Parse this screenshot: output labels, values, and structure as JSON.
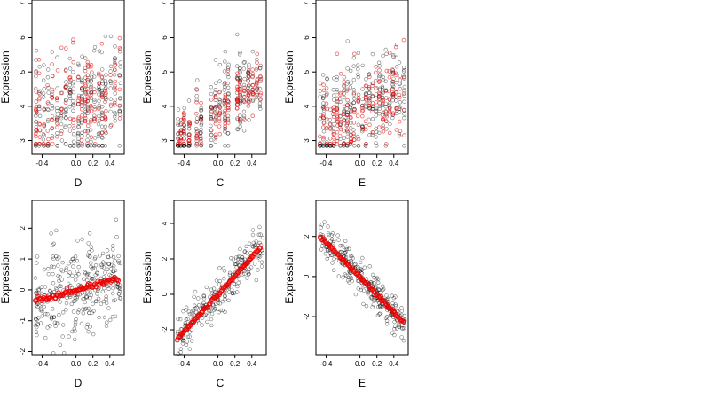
{
  "chart_data": [
    {
      "type": "scatter",
      "panel": "top-left",
      "xlabel": "D",
      "ylabel": "Expression",
      "xlim": [
        -0.52,
        0.57
      ],
      "ylim": [
        2.6,
        7.1
      ],
      "xticks": [
        -0.4,
        0.0,
        0.2,
        0.4
      ],
      "xtick_labels": [
        "-0.4",
        "0.0",
        "0.2",
        "0.4"
      ],
      "yticks": [
        3,
        4,
        5,
        6,
        7
      ],
      "ytick_labels": [
        "3",
        "4",
        "5",
        "6",
        "7"
      ],
      "point_colors": {
        "black": "#000000",
        "red": "#e00000"
      },
      "x_groups": [
        -0.47,
        -0.43,
        -0.38,
        -0.33,
        -0.28,
        -0.22,
        -0.17,
        -0.12,
        -0.07,
        -0.03,
        0.03,
        0.07,
        0.11,
        0.14,
        0.18,
        0.22,
        0.27,
        0.31,
        0.35,
        0.41,
        0.46,
        0.52
      ],
      "black_points": {
        "center": 4.0,
        "slope": 0.6,
        "spread": 0.85,
        "count": 300
      },
      "red_points": {
        "center": 4.1,
        "slope": 0.9,
        "spread": 0.75,
        "count": 180
      }
    },
    {
      "type": "scatter",
      "panel": "top-middle",
      "xlabel": "C",
      "ylabel": "Expression",
      "xlim": [
        -0.52,
        0.57
      ],
      "ylim": [
        2.6,
        7.1
      ],
      "xticks": [
        -0.4,
        0.0,
        0.2,
        0.4
      ],
      "xtick_labels": [
        "-0.4",
        "0.0",
        "0.2",
        "0.4"
      ],
      "yticks": [
        3,
        4,
        5,
        6,
        7
      ],
      "ytick_labels": [
        "3",
        "4",
        "5",
        "6",
        "7"
      ],
      "x_groups": [
        -0.47,
        -0.44,
        -0.4,
        -0.34,
        -0.25,
        -0.2,
        -0.08,
        -0.03,
        0.02,
        0.08,
        0.12,
        0.23,
        0.26,
        0.31,
        0.36,
        0.41,
        0.46,
        0.5
      ],
      "black_points": {
        "center": 3.9,
        "slope": 1.9,
        "spread": 0.6,
        "count": 260
      },
      "red_points": {
        "center": 3.8,
        "slope": 1.8,
        "spread": 0.45,
        "count": 170
      }
    },
    {
      "type": "scatter",
      "panel": "top-right",
      "xlabel": "E",
      "ylabel": "Expression",
      "xlim": [
        -0.52,
        0.57
      ],
      "ylim": [
        2.6,
        7.1
      ],
      "xticks": [
        -0.4,
        0.0,
        0.2,
        0.4
      ],
      "xtick_labels": [
        "-0.4",
        "0.0",
        "0.2",
        "0.4"
      ],
      "yticks": [
        3,
        4,
        5,
        6,
        7
      ],
      "ytick_labels": [
        "3",
        "4",
        "5",
        "6",
        "7"
      ],
      "x_groups": [
        -0.47,
        -0.43,
        -0.39,
        -0.35,
        -0.31,
        -0.27,
        -0.23,
        -0.19,
        -0.15,
        -0.11,
        -0.07,
        -0.02,
        0.03,
        0.07,
        0.11,
        0.15,
        0.19,
        0.23,
        0.27,
        0.31,
        0.35,
        0.39,
        0.43,
        0.47,
        0.52
      ],
      "black_points": {
        "center": 3.9,
        "slope": 1.3,
        "spread": 0.7,
        "count": 300
      },
      "red_points": {
        "center": 3.9,
        "slope": 1.4,
        "spread": 0.6,
        "count": 200
      }
    },
    {
      "type": "scatter",
      "panel": "bottom-left",
      "xlabel": "D",
      "ylabel": "Expression",
      "xlim": [
        -0.52,
        0.57
      ],
      "ylim": [
        -2.1,
        2.9
      ],
      "xticks": [
        -0.4,
        0.0,
        0.2,
        0.4
      ],
      "xtick_labels": [
        "-0.4",
        "0.0",
        "0.2",
        "0.4"
      ],
      "yticks": [
        -2,
        -1,
        0,
        1,
        2
      ],
      "ytick_labels": [
        "-2",
        "-1",
        "0",
        "1",
        "2"
      ],
      "black_points": {
        "center": 0.0,
        "slope": 0.75,
        "spread": 0.7,
        "count": 320
      },
      "fitted_line": {
        "x": [
          -0.48,
          0.5
        ],
        "y": [
          -0.38,
          0.38
        ]
      }
    },
    {
      "type": "scatter",
      "panel": "bottom-middle",
      "xlabel": "C",
      "ylabel": "Expression",
      "xlim": [
        -0.52,
        0.57
      ],
      "ylim": [
        -3.4,
        5.3
      ],
      "xticks": [
        -0.4,
        0.0,
        0.2,
        0.4
      ],
      "xtick_labels": [
        "-0.4",
        "0.0",
        "0.2",
        "0.4"
      ],
      "yticks": [
        -2,
        0,
        2,
        4
      ],
      "ytick_labels": [
        "-2",
        "0",
        "2",
        "4"
      ],
      "black_points": {
        "center": 0.0,
        "slope": 5.3,
        "spread": 0.55,
        "count": 260
      },
      "fitted_line": {
        "x": [
          -0.48,
          0.5
        ],
        "y": [
          -2.5,
          2.6
        ]
      }
    },
    {
      "type": "scatter",
      "panel": "bottom-right",
      "xlabel": "E",
      "ylabel": "Expression",
      "xlim": [
        -0.52,
        0.57
      ],
      "ylim": [
        -3.9,
        3.8
      ],
      "xticks": [
        -0.4,
        0.0,
        0.2,
        0.4
      ],
      "xtick_labels": [
        "-0.4",
        "0.0",
        "0.2",
        "0.4"
      ],
      "yticks": [
        -2,
        0,
        2
      ],
      "ytick_labels": [
        "-2",
        "0",
        "2"
      ],
      "black_points": {
        "center": 0.0,
        "slope": -4.5,
        "spread": 0.45,
        "count": 300
      },
      "fitted_line": {
        "x": [
          -0.47,
          0.52
        ],
        "y": [
          2.0,
          -2.3
        ]
      }
    }
  ]
}
